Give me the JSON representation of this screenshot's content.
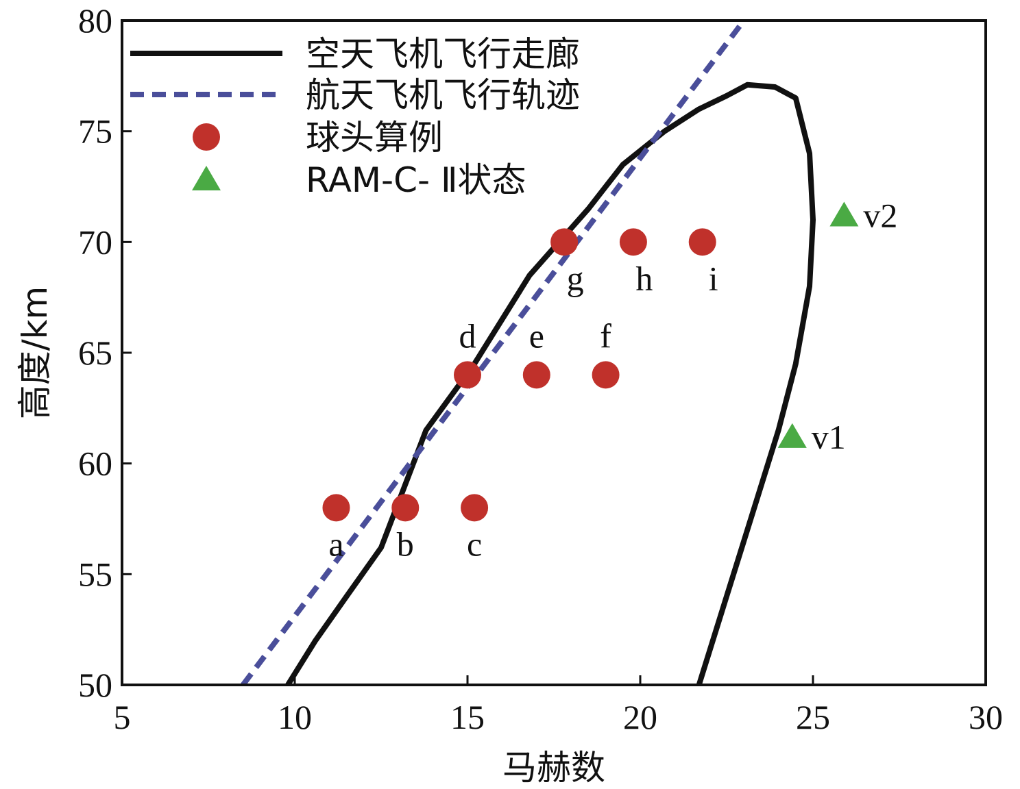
{
  "chart_data": {
    "type": "line",
    "title": "",
    "xlabel": "马赫数",
    "ylabel": "高度/km",
    "xlim": [
      5,
      30
    ],
    "ylim": [
      50,
      80
    ],
    "xticks": [
      5,
      10,
      15,
      20,
      25,
      30
    ],
    "yticks": [
      50,
      55,
      60,
      65,
      70,
      75,
      80
    ],
    "grid": false,
    "legend_position": "top-left",
    "series": [
      {
        "name": "空天飞机飞行走廊",
        "style": "solid",
        "color": "#111111",
        "points": [
          [
            9.8,
            50
          ],
          [
            10.6,
            52
          ],
          [
            11.5,
            54
          ],
          [
            12.5,
            56.2
          ],
          [
            13.8,
            61.5
          ],
          [
            15.2,
            64.5
          ],
          [
            16.8,
            68.5
          ],
          [
            18.5,
            71.5
          ],
          [
            19.5,
            73.5
          ],
          [
            20.7,
            75
          ],
          [
            21.7,
            76
          ],
          [
            22.5,
            76.6
          ],
          [
            23.1,
            77.1
          ],
          [
            23.9,
            77
          ],
          [
            24.5,
            76.5
          ],
          [
            24.9,
            74
          ],
          [
            25.0,
            71
          ],
          [
            24.9,
            68
          ],
          [
            24.5,
            64.5
          ],
          [
            24.0,
            61.5
          ],
          [
            23.4,
            58.5
          ],
          [
            22.5,
            54
          ],
          [
            21.7,
            50
          ]
        ]
      },
      {
        "name": "航天飞机飞行轨迹",
        "style": "dashed",
        "color": "#4a4e9a",
        "points": [
          [
            8.5,
            50
          ],
          [
            23.0,
            80
          ]
        ]
      }
    ],
    "points_sphere": {
      "name": "球头算例",
      "color": "#c0312b",
      "items": [
        {
          "label": "a",
          "x": 11.2,
          "y": 58
        },
        {
          "label": "b",
          "x": 13.2,
          "y": 58
        },
        {
          "label": "c",
          "x": 15.2,
          "y": 58
        },
        {
          "label": "d",
          "x": 15.0,
          "y": 64
        },
        {
          "label": "e",
          "x": 17.0,
          "y": 64
        },
        {
          "label": "f",
          "x": 19.0,
          "y": 64
        },
        {
          "label": "g",
          "x": 17.8,
          "y": 70
        },
        {
          "label": "h",
          "x": 19.8,
          "y": 70
        },
        {
          "label": "i",
          "x": 21.8,
          "y": 70
        }
      ]
    },
    "points_ram": {
      "name": "RAM-C- Ⅱ状态",
      "color": "#4aaa44",
      "items": [
        {
          "label": "v1",
          "x": 24.4,
          "y": 61.2
        },
        {
          "label": "v2",
          "x": 25.9,
          "y": 71.2
        }
      ]
    }
  }
}
